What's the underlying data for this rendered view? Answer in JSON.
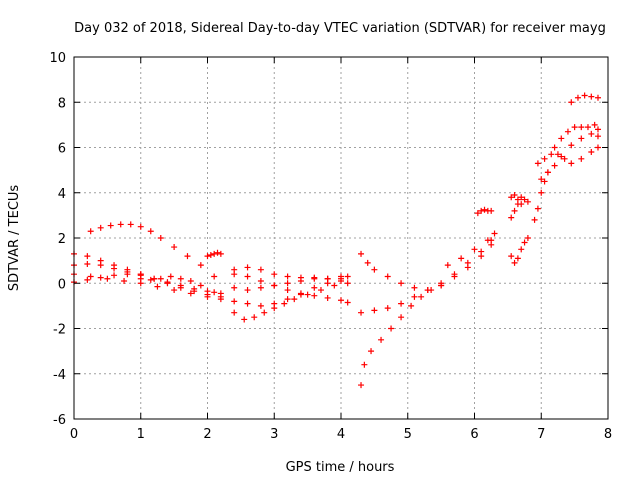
{
  "chart_data": {
    "type": "scatter",
    "title": "Day 032 of 2018, Sidereal Day-to-day VTEC variation (SDTVAR) for receiver mayg",
    "xlabel": "GPS time / hours",
    "ylabel": "SDTVAR / TECUs",
    "xlim": [
      0,
      8
    ],
    "ylim": [
      -6,
      10
    ],
    "xticks": [
      0,
      1,
      2,
      3,
      4,
      5,
      6,
      7,
      8
    ],
    "yticks": [
      -6,
      -4,
      -2,
      0,
      2,
      4,
      6,
      8,
      10
    ],
    "grid": true,
    "marker": "plus",
    "series": [
      {
        "name": "s1",
        "color": "#ff0000",
        "x": [
          0.25,
          0.4,
          0.55,
          0.7,
          0.85,
          1.0,
          1.15,
          1.3,
          1.5,
          1.7,
          1.9,
          2.1
        ],
        "y": [
          2.3,
          2.45,
          2.55,
          2.6,
          2.6,
          2.5,
          2.3,
          2.0,
          1.6,
          1.2,
          0.8,
          0.3
        ]
      },
      {
        "name": "s2",
        "color": "#ff0000",
        "x": [
          0.0,
          0.2,
          0.4,
          0.6,
          0.8,
          1.0,
          1.2,
          1.4,
          1.6,
          1.8,
          2.0,
          2.2
        ],
        "y": [
          1.3,
          1.2,
          1.0,
          0.8,
          0.6,
          0.4,
          0.2,
          0.0,
          -0.2,
          -0.35,
          -0.5,
          -0.6
        ]
      },
      {
        "name": "s3",
        "color": "#ff0000",
        "x": [
          0.0,
          0.2,
          0.4,
          0.6,
          0.8,
          1.0,
          1.2,
          1.4,
          1.6,
          1.8,
          2.0,
          2.2
        ],
        "y": [
          0.8,
          0.85,
          0.8,
          0.65,
          0.5,
          0.35,
          0.2,
          0.05,
          -0.1,
          -0.25,
          -0.35,
          -0.45
        ]
      },
      {
        "name": "s4",
        "color": "#ff0000",
        "x": [
          0.0,
          0.25,
          0.5,
          0.75,
          1.0,
          1.25,
          1.5,
          1.75,
          2.0,
          2.2
        ],
        "y": [
          0.4,
          0.3,
          0.2,
          0.1,
          0.0,
          -0.15,
          -0.3,
          -0.45,
          -0.6,
          -0.7
        ]
      },
      {
        "name": "s5",
        "color": "#ff0000",
        "x": [
          0.0,
          0.2,
          0.4,
          0.6,
          0.8,
          1.0
        ],
        "y": [
          0.05,
          0.15,
          0.25,
          0.35,
          0.4,
          0.4
        ]
      },
      {
        "name": "s6",
        "color": "#ff0000",
        "x": [
          1.0,
          1.15,
          1.3,
          1.45,
          1.6,
          1.75,
          1.9,
          2.1
        ],
        "y": [
          0.2,
          0.15,
          0.2,
          0.3,
          0.2,
          0.1,
          -0.1,
          -0.4
        ]
      },
      {
        "name": "s7",
        "color": "#ff0000",
        "x": [
          2.0,
          2.05,
          2.1,
          2.15,
          2.2
        ],
        "y": [
          1.2,
          1.25,
          1.3,
          1.35,
          1.3
        ]
      },
      {
        "name": "s8",
        "color": "#ff0000",
        "x": [
          2.4,
          2.6,
          2.8,
          3.0,
          3.2,
          3.4,
          3.6,
          3.8,
          4.0,
          4.1
        ],
        "y": [
          0.6,
          0.7,
          0.6,
          0.4,
          0.3,
          0.25,
          0.25,
          0.2,
          0.3,
          0.3
        ]
      },
      {
        "name": "s9",
        "color": "#ff0000",
        "x": [
          2.4,
          2.6,
          2.8,
          3.0,
          3.2,
          3.4,
          3.6,
          3.8,
          4.0,
          4.1
        ],
        "y": [
          0.4,
          0.3,
          0.1,
          -0.1,
          -0.3,
          -0.45,
          -0.55,
          -0.65,
          -0.75,
          -0.85
        ]
      },
      {
        "name": "s10",
        "color": "#ff0000",
        "x": [
          2.4,
          2.6,
          2.8,
          3.0,
          3.2,
          3.4,
          3.6,
          3.8,
          4.0
        ],
        "y": [
          -0.2,
          -0.3,
          -0.2,
          -0.1,
          0.0,
          0.1,
          0.2,
          0.2,
          0.1
        ]
      },
      {
        "name": "s11",
        "color": "#ff0000",
        "x": [
          2.4,
          2.55,
          2.7,
          2.85,
          3.0,
          3.15,
          3.3,
          3.5,
          3.7,
          3.9,
          4.1
        ],
        "y": [
          -1.3,
          -1.6,
          -1.5,
          -1.3,
          -1.1,
          -0.9,
          -0.7,
          -0.5,
          -0.3,
          -0.1,
          0.0
        ]
      },
      {
        "name": "s12",
        "color": "#ff0000",
        "x": [
          2.4,
          2.6,
          2.8,
          3.0,
          3.2,
          3.4,
          3.6,
          3.8,
          4.0
        ],
        "y": [
          -0.8,
          -0.9,
          -1.0,
          -0.9,
          -0.7,
          -0.5,
          -0.2,
          0.0,
          0.2
        ]
      },
      {
        "name": "s13",
        "color": "#ff0000",
        "x": [
          4.3,
          4.4,
          4.5,
          4.7,
          4.9,
          5.1,
          5.3,
          5.5,
          5.7,
          5.9,
          6.1,
          6.25
        ],
        "y": [
          1.3,
          0.9,
          0.6,
          0.3,
          0.0,
          -0.2,
          -0.3,
          -0.1,
          0.4,
          0.9,
          1.4,
          1.9
        ]
      },
      {
        "name": "s14",
        "color": "#ff0000",
        "x": [
          4.3,
          4.5,
          4.7,
          4.9,
          5.1,
          5.3,
          5.5,
          5.7,
          5.9,
          6.1,
          6.25
        ],
        "y": [
          -1.3,
          -1.2,
          -1.1,
          -0.9,
          -0.6,
          -0.3,
          0.0,
          0.3,
          0.7,
          1.2,
          1.7
        ]
      },
      {
        "name": "s15",
        "color": "#ff0000",
        "x": [
          4.3,
          4.35,
          4.45,
          4.6,
          4.75,
          4.9,
          5.05,
          5.2,
          5.35,
          5.5
        ],
        "y": [
          -4.5,
          -3.6,
          -3.0,
          -2.5,
          -2.0,
          -1.5,
          -1.0,
          -0.6,
          -0.3,
          -0.1
        ]
      },
      {
        "name": "s16",
        "color": "#ff0000",
        "x": [
          5.6,
          5.8,
          6.0,
          6.2,
          6.3
        ],
        "y": [
          0.8,
          1.1,
          1.5,
          1.9,
          2.2
        ]
      },
      {
        "name": "s17",
        "color": "#ff0000",
        "x": [
          6.05,
          6.1,
          6.15,
          6.2,
          6.25
        ],
        "y": [
          3.1,
          3.2,
          3.25,
          3.2,
          3.2
        ]
      },
      {
        "name": "s18",
        "color": "#ff0000",
        "x": [
          6.55,
          6.6,
          6.65,
          6.7,
          6.75,
          6.8
        ],
        "y": [
          3.8,
          3.9,
          3.7,
          3.5,
          3.7,
          3.6
        ]
      },
      {
        "name": "s19",
        "color": "#ff0000",
        "x": [
          6.55,
          6.6,
          6.65,
          6.7
        ],
        "y": [
          2.9,
          3.2,
          3.5,
          3.8
        ]
      },
      {
        "name": "s20",
        "color": "#ff0000",
        "x": [
          6.55,
          6.6,
          6.65,
          6.7,
          6.75,
          6.8
        ],
        "y": [
          1.2,
          0.9,
          1.1,
          1.5,
          1.8,
          2.0
        ]
      },
      {
        "name": "s21",
        "color": "#ff0000",
        "x": [
          6.9,
          6.95,
          7.0,
          7.05,
          7.1
        ],
        "y": [
          2.8,
          3.3,
          4.0,
          4.5,
          4.9
        ]
      },
      {
        "name": "s22",
        "color": "#ff0000",
        "x": [
          6.95,
          7.05,
          7.15,
          7.25,
          7.35,
          7.45,
          7.6,
          7.75,
          7.85
        ],
        "y": [
          5.3,
          5.5,
          5.7,
          5.7,
          5.5,
          5.3,
          5.5,
          5.8,
          6.0
        ]
      },
      {
        "name": "s23",
        "color": "#ff0000",
        "x": [
          7.0,
          7.1,
          7.2,
          7.3,
          7.45,
          7.6,
          7.75,
          7.85
        ],
        "y": [
          4.6,
          4.9,
          5.2,
          5.6,
          6.1,
          6.4,
          6.6,
          6.5
        ]
      },
      {
        "name": "s24",
        "color": "#ff0000",
        "x": [
          7.2,
          7.3,
          7.4,
          7.5,
          7.6,
          7.7,
          7.8,
          7.85
        ],
        "y": [
          6.0,
          6.4,
          6.7,
          6.9,
          6.9,
          6.9,
          7.0,
          6.8
        ]
      },
      {
        "name": "s25",
        "color": "#ff0000",
        "x": [
          7.45,
          7.55,
          7.65,
          7.75,
          7.85
        ],
        "y": [
          8.0,
          8.2,
          8.3,
          8.25,
          8.2
        ]
      }
    ]
  }
}
